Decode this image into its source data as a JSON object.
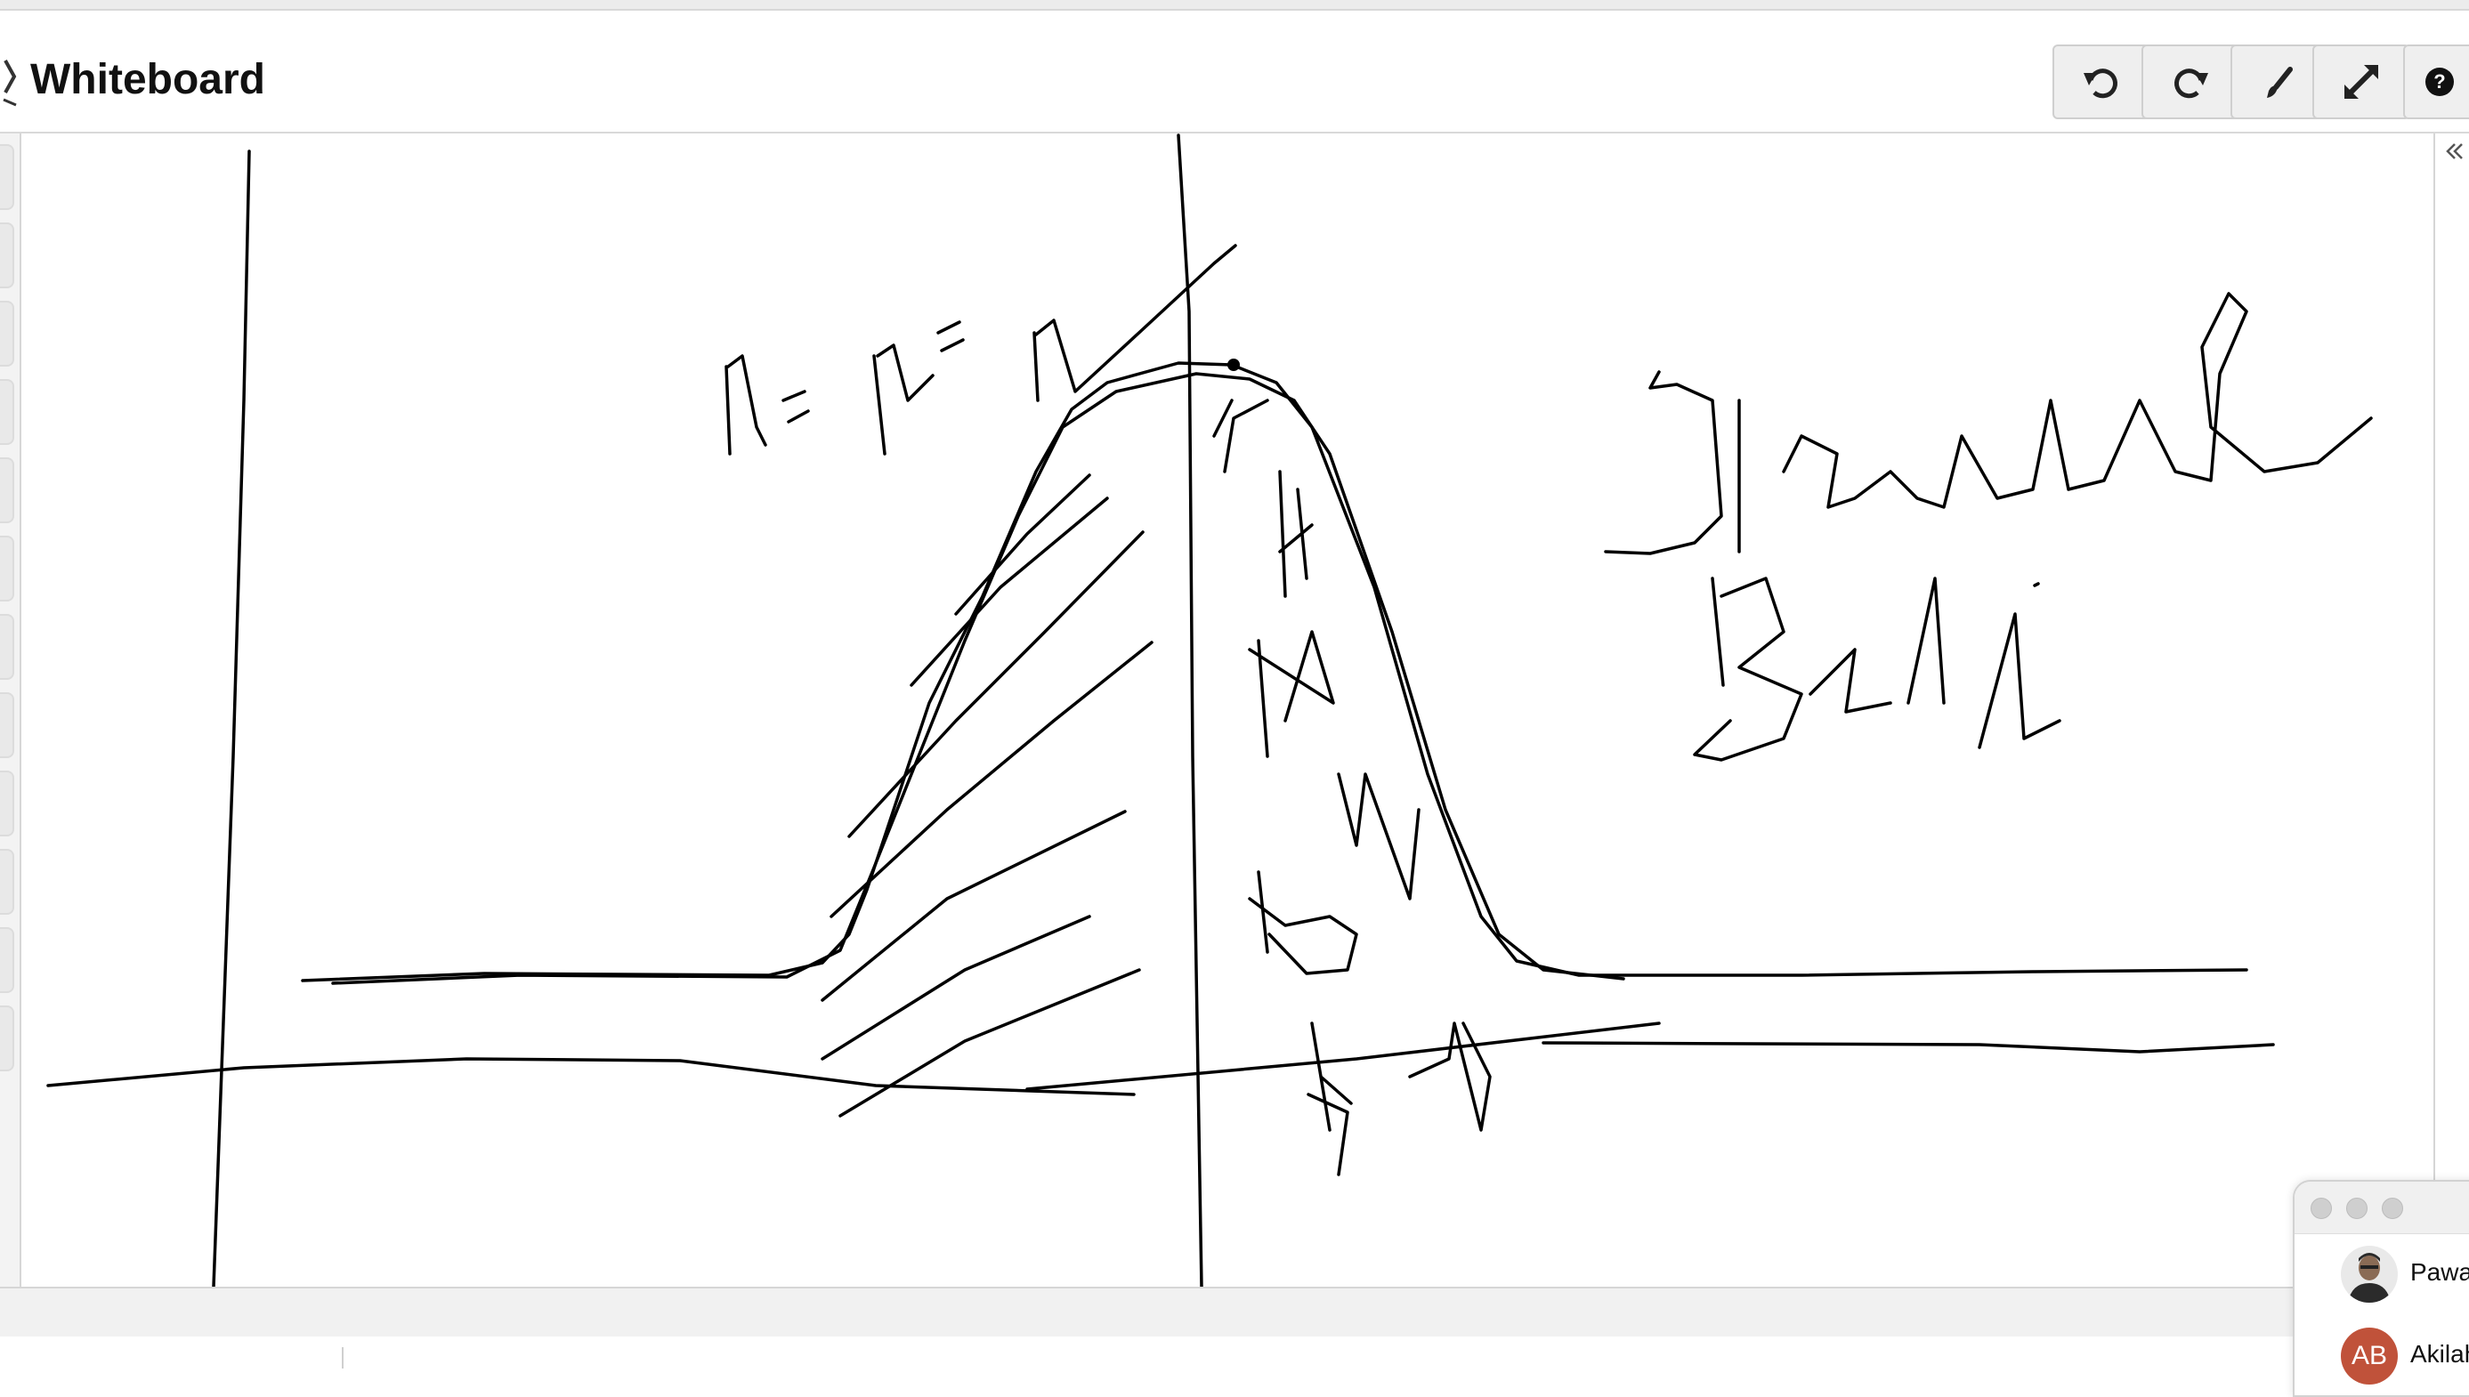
{
  "window": {
    "title": "Whiteboard"
  },
  "toolbar": {
    "buttons": [
      {
        "name": "undo",
        "icon": "undo-icon"
      },
      {
        "name": "redo",
        "icon": "redo-icon"
      },
      {
        "name": "brush",
        "icon": "paint-brush-icon"
      },
      {
        "name": "expand",
        "icon": "expand-icon"
      },
      {
        "name": "help",
        "icon": "help-icon"
      }
    ]
  },
  "participants": [
    {
      "name": "Pawar",
      "avatar": "photo"
    },
    {
      "name": "Akilah",
      "initials": "AB",
      "avatar_color": "#c0523a"
    }
  ],
  "colors": {
    "ink": "#000000",
    "toolbar_bg": "#efefef",
    "border": "#d6d6d6"
  }
}
